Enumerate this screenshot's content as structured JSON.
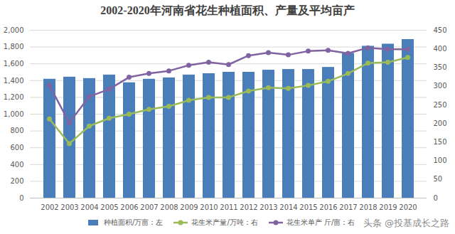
{
  "chart_data": {
    "type": "bar",
    "title": "2002-2020年河南省花生种植面积、产量及平均亩产",
    "annotations": [
      "头条 @投基成长之路"
    ],
    "categories": [
      "2002",
      "2003",
      "2004",
      "2005",
      "2006",
      "2007",
      "2008",
      "2009",
      "2010",
      "2011",
      "2012",
      "2013",
      "2014",
      "2015",
      "2016",
      "2017",
      "2018",
      "2019",
      "2020"
    ],
    "series": [
      {
        "name": "种植面积/万亩：左",
        "type": "bar",
        "color": "#4a7ebb",
        "values": [
          1417,
          1442,
          1425,
          1467,
          1375,
          1417,
          1433,
          1467,
          1483,
          1500,
          1500,
          1525,
          1533,
          1533,
          1558,
          1725,
          1810,
          1835,
          1890
        ]
      },
      {
        "name": "花生米产量/万吨：右",
        "type": "line",
        "axis": "y2",
        "marker": "circle",
        "color": "#9bbb59",
        "values": [
          212,
          146,
          193,
          214,
          225,
          238,
          246,
          262,
          270,
          270,
          287,
          296,
          294,
          302,
          313,
          334,
          362,
          364,
          377
        ]
      },
      {
        "name": "花生米单产 斤/亩：右",
        "type": "line",
        "axis": "y2",
        "marker": "circle",
        "color": "#8064a2",
        "values": [
          302,
          202,
          272,
          292,
          324,
          334,
          341,
          356,
          364,
          358,
          382,
          390,
          384,
          394,
          396,
          388,
          403,
          399,
          399
        ]
      }
    ],
    "ylim": [
      0,
      2000
    ],
    "yticks": [
      0,
      200,
      400,
      600,
      800,
      1000,
      1200,
      1400,
      1600,
      1800,
      2000
    ],
    "y2lim": [
      0,
      450
    ],
    "y2ticks": [
      0,
      50,
      100,
      150,
      200,
      250,
      300,
      350,
      400,
      450
    ],
    "grid": true,
    "legend": "bottom"
  }
}
